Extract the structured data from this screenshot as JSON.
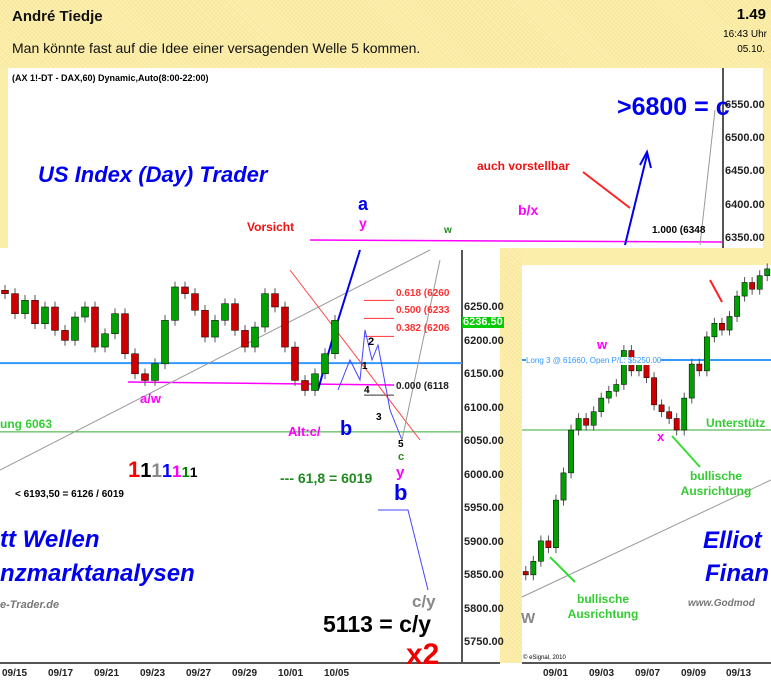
{
  "post": {
    "author": "André Tiedje",
    "message": "Man könnte fast auf die Idee einer versagenden Welle 5 kommen.",
    "number": "1.49",
    "time": "16:43 Uhr",
    "date": "05.10."
  },
  "chart_data": [
    {
      "type": "candlestick",
      "title": "(AX 1!-DT - DAX,60) Dynamic,Auto(8:00-22:00)",
      "y_ticks": [
        "6550.00",
        "6500.00",
        "6450.00",
        "6400.00",
        "6350.00"
      ],
      "annotations": {
        "headline": "US Index (Day) Trader",
        "target": ">6800 = c",
        "hint": "auch vorstellbar",
        "warn": "Vorsicht",
        "fib_top": "1.000 (6348",
        "bx": "b/x",
        "a": "a",
        "y": "y",
        "w": "w",
        "c": "c"
      }
    },
    {
      "type": "candlestick",
      "y_ticks": [
        "6250.00",
        "6200.00",
        "6150.00",
        "6100.00",
        "6050.00",
        "6000.00",
        "5950.00",
        "5900.00",
        "5850.00",
        "5800.00",
        "5750.00"
      ],
      "x_ticks": [
        "09/15",
        "09/17",
        "09/21",
        "09/23",
        "09/27",
        "09/29",
        "10/01",
        "10/05"
      ],
      "closes": [
        6270,
        6240,
        6260,
        6225,
        6250,
        6215,
        6200,
        6235,
        6250,
        6190,
        6210,
        6240,
        6180,
        6150,
        6140,
        6165,
        6230,
        6280,
        6270,
        6245,
        6205,
        6230,
        6255,
        6215,
        6190,
        6220,
        6270,
        6250,
        6190,
        6140,
        6125,
        6150,
        6180,
        6230
      ],
      "price_badge": "6236.50",
      "fib": [
        {
          "label": "0.618 (6260",
          "value": 6260
        },
        {
          "label": "0.500 (6233",
          "value": 6233
        },
        {
          "label": "0.382 (6206",
          "value": 6206
        },
        {
          "label": "0.000 (6118",
          "value": 6118
        }
      ],
      "support_label": "ung 6063",
      "support_value": 6063,
      "long_value": 6166,
      "annotations": {
        "aw": "a/w",
        "alt_c": "Alt:c/",
        "alt_b": "b",
        "fib618": "--- 61,8 = 6019",
        "range": "< 6193,50 = 6126 / 6019",
        "ones": [
          "1",
          "1",
          "1",
          "1",
          "1",
          "1",
          "1"
        ],
        "b_big": "b",
        "y5": "y",
        "c5": "c",
        "five": "5",
        "cy_small": "c/y",
        "target": "5113 = c/y",
        "x2": "x2",
        "brand1": "tt Wellen",
        "brand2": "nzmarktanalysen",
        "site": "e-Trader.de",
        "w2": "2",
        "w3": "3",
        "w4": "4",
        "w1": "1"
      },
      "ones_colors": [
        "#ff0000",
        "#000000",
        "#888888",
        "#0000ff",
        "#ff00ff",
        "#008000",
        "#000000"
      ]
    },
    {
      "type": "candlestick",
      "x_ticks": [
        "09/01",
        "09/03",
        "09/07",
        "09/09",
        "09/13"
      ],
      "closes": [
        5850,
        5870,
        5900,
        5890,
        5960,
        6000,
        6063,
        6080,
        6070,
        6090,
        6110,
        6120,
        6130,
        6180,
        6150,
        6160,
        6140,
        6100,
        6090,
        6080,
        6063,
        6110,
        6160,
        6150,
        6200,
        6220,
        6210,
        6230,
        6260,
        6280,
        6270,
        6290,
        6300
      ],
      "long_label": "Long 3 @ 61660, Open P/L: $5250.00",
      "support_label": "Unterstütz",
      "annotations": {
        "w": "w",
        "x": "x",
        "bull1": "bullische Ausrichtung",
        "bull2": "bullische Ausrichtung",
        "W": "W",
        "brand1": "Elliot",
        "brand2": "Finan",
        "site": "www.Godmod",
        "copy": "© eSignal, 2010"
      }
    }
  ],
  "colors": {
    "up": "#00a000",
    "down": "#cc0000",
    "fib": "#ff3030",
    "long": "#3399ff",
    "support": "#33aa33",
    "magenta": "#ff00ff",
    "blue": "#0000ee"
  }
}
